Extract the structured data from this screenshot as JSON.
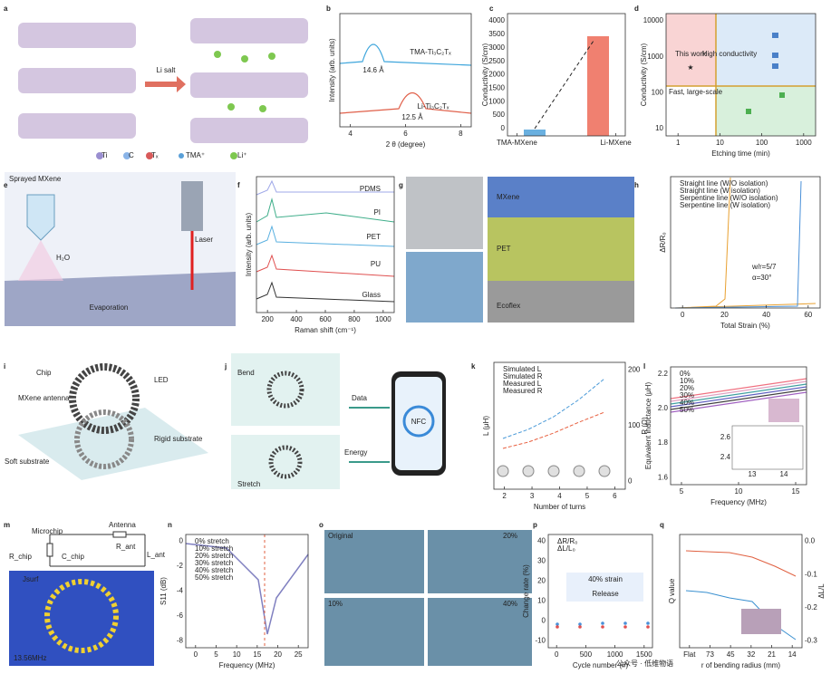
{
  "panels": {
    "a": {
      "letter": "a",
      "labels": [
        "Li salt",
        "Ti",
        "C",
        "Tₓ",
        "TMA⁺",
        "Li⁺"
      ]
    },
    "b": {
      "letter": "b",
      "ylabel": "Intensity (arb. units)",
      "xlabel": "2 θ (degree)",
      "xticks": [
        "4",
        "6",
        "8"
      ],
      "labels": [
        "TMA-Ti₃C₂Tₓ",
        "Li-Ti₃C₂Tₓ",
        "14.6 Å",
        "12.5 Å"
      ]
    },
    "c": {
      "letter": "c",
      "ylabel": "Conductivity (S/cm)",
      "yticks": [
        "0",
        "500",
        "1000",
        "1500",
        "2000",
        "2500",
        "3000",
        "3500",
        "4000"
      ],
      "xticks": [
        "TMA-MXene",
        "Li-MXene"
      ]
    },
    "d": {
      "letter": "d",
      "ylabel": "Conductivity (S/cm)",
      "xlabel": "Etching time (min)",
      "xticks": [
        "1",
        "10",
        "100",
        "1000"
      ],
      "yticks": [
        "10",
        "100",
        "1000",
        "10000"
      ],
      "labels": [
        "This work",
        "High conductivity",
        "Fast, large-scale"
      ]
    },
    "e": {
      "letter": "e",
      "labels": [
        "Sprayed MXene",
        "Laser",
        "H₂O",
        "Evaporation"
      ]
    },
    "f": {
      "letter": "f",
      "ylabel": "Intensity (arb. units)",
      "xlabel": "Raman shift (cm⁻¹)",
      "xticks": [
        "200",
        "400",
        "600",
        "800",
        "1000"
      ],
      "labels": [
        "PDMS",
        "PI",
        "PET",
        "PU",
        "Glass"
      ]
    },
    "g": {
      "letter": "g",
      "labels": [
        "MXene",
        "PET",
        "Ecoflex"
      ]
    },
    "h": {
      "letter": "h",
      "ylabel": "ΔR/R₀",
      "xlabel": "Total Strain (%)",
      "xticks": [
        "0",
        "20",
        "40",
        "60"
      ],
      "legend": [
        "Straight line (W/O isolation)",
        "Straight line (W isolation)",
        "Serpentine line (W/O isolation)",
        "Serpentine line (W isolation)"
      ],
      "labels": [
        "w/r=5/7",
        "α=30°"
      ]
    },
    "i": {
      "letter": "i",
      "labels": [
        "Chip",
        "LED",
        "MXene antenna",
        "Rigid substrate",
        "Soft substrate"
      ]
    },
    "j": {
      "letter": "j",
      "labels": [
        "Bend",
        "Data",
        "Energy",
        "Stretch",
        "NFC"
      ]
    },
    "k": {
      "letter": "k",
      "ylabel": "L (μH)",
      "y2label": "R (Ω)",
      "xlabel": "Number of turns",
      "xticks": [
        "2",
        "3",
        "4",
        "5",
        "6"
      ],
      "y2ticks": [
        "0",
        "100",
        "200"
      ],
      "legend": [
        "Simulated L",
        "Simulated R",
        "Measured L",
        "Measured R"
      ]
    },
    "l": {
      "letter": "l",
      "ylabel": "Equivalent inductance (μH)",
      "xlabel": "Frequency (MHz)",
      "xticks": [
        "5",
        "10",
        "15"
      ],
      "yticks": [
        "1.6",
        "1.8",
        "2.0",
        "2.2"
      ],
      "legend": [
        "0%",
        "10%",
        "20%",
        "30%",
        "40%",
        "50%"
      ],
      "inset_xticks": [
        "13",
        "14"
      ],
      "inset_yticks": [
        "2.4",
        "2.6"
      ]
    },
    "m": {
      "letter": "m",
      "labels": [
        "Microchip",
        "Antenna",
        "R_chip",
        "C_chip",
        "R_ant",
        "L_ant",
        "Jsurf",
        "13.56MHz"
      ]
    },
    "n": {
      "letter": "n",
      "ylabel": "S11 (dB)",
      "xlabel": "Frequency (MHz)",
      "xticks": [
        "0",
        "5",
        "10",
        "15",
        "20",
        "25"
      ],
      "yticks": [
        "-8",
        "-6",
        "-4",
        "-2",
        "0"
      ],
      "legend": [
        "0% stretch",
        "10% stretch",
        "20% stretch",
        "30% stretch",
        "40% stretch",
        "50% stretch"
      ]
    },
    "o": {
      "letter": "o",
      "labels": [
        "Original",
        "20%",
        "10%",
        "40%"
      ]
    },
    "p": {
      "letter": "p",
      "ylabel": "Change rate (%)",
      "xlabel": "Cycle number (#)",
      "xticks": [
        "0",
        "500",
        "1000",
        "1500"
      ],
      "yticks": [
        "-10",
        "0",
        "10",
        "20",
        "30",
        "40"
      ],
      "legend": [
        "ΔR/R₀",
        "ΔL/L₀"
      ],
      "labels": [
        "40% strain",
        "Release"
      ]
    },
    "q": {
      "letter": "q",
      "ylabel": "Q value",
      "y2label": "ΔL/L",
      "xlabel": "r of bending radius (mm)",
      "xticks": [
        "Flat",
        "73",
        "45",
        "32",
        "21",
        "14"
      ],
      "y2ticks": [
        "-0.3",
        "-0.2",
        "-0.1",
        "0.0"
      ]
    }
  },
  "watermark": "公众号 · 低维物语"
}
